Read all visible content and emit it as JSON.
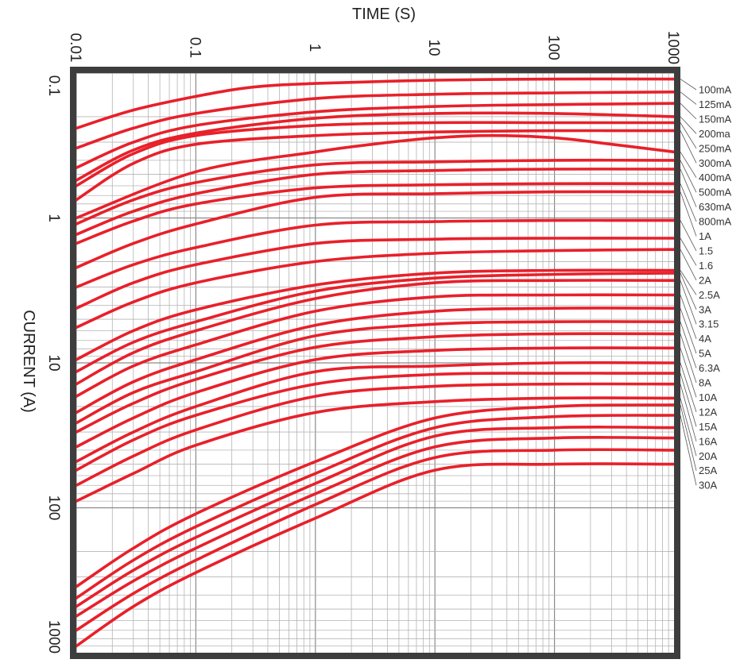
{
  "chart_data": {
    "type": "line",
    "title": "",
    "xlabel": "TIME (S)",
    "ylabel": "CURRENT (A)",
    "x_scale": "log",
    "y_scale": "log",
    "xlim": [
      0.01,
      1000
    ],
    "ylim": [
      0.1,
      1000
    ],
    "x_ticks": [
      "0.01",
      "0.1",
      "1",
      "10",
      "100",
      "1000"
    ],
    "y_ticks": [
      "0.1",
      "1",
      "10",
      "100",
      "1000"
    ],
    "grid": true,
    "legend_placement": "right",
    "line_color": "#e8202a",
    "frame_color": "#3d3d3d",
    "series": [
      {
        "name": "100mA",
        "x": [
          0.01,
          0.03,
          0.1,
          0.3,
          1,
          10,
          100,
          1000
        ],
        "y": [
          0.24,
          0.18,
          0.145,
          0.125,
          0.118,
          0.112,
          0.11,
          0.11
        ]
      },
      {
        "name": "125mA",
        "x": [
          0.01,
          0.03,
          0.1,
          1,
          10,
          100,
          1000
        ],
        "y": [
          0.33,
          0.24,
          0.19,
          0.15,
          0.14,
          0.137,
          0.135
        ]
      },
      {
        "name": "150mA",
        "x": [
          0.01,
          0.03,
          0.1,
          1,
          10,
          100,
          1000
        ],
        "y": [
          0.45,
          0.3,
          0.23,
          0.185,
          0.17,
          0.165,
          0.162
        ]
      },
      {
        "name": "200ma",
        "x": [
          0.01,
          0.03,
          0.1,
          1,
          10,
          100,
          1000
        ],
        "y": [
          0.55,
          0.34,
          0.26,
          0.205,
          0.19,
          0.19,
          0.2
        ]
      },
      {
        "name": "250mA",
        "x": [
          0.01,
          0.03,
          0.1,
          1,
          10,
          100,
          1000
        ],
        "y": [
          0.6,
          0.36,
          0.27,
          0.23,
          0.22,
          0.22,
          0.22
        ]
      },
      {
        "name": "300mA",
        "x": [
          0.01,
          0.03,
          0.1,
          1,
          10,
          100,
          1000
        ],
        "y": [
          0.75,
          0.42,
          0.31,
          0.27,
          0.255,
          0.25,
          0.25
        ]
      },
      {
        "name": "400mA",
        "x": [
          0.01,
          0.1,
          1,
          3,
          10,
          30,
          100,
          300,
          1000
        ],
        "y": [
          1.0,
          0.48,
          0.35,
          0.31,
          0.28,
          0.27,
          0.28,
          0.31,
          0.35
        ]
      },
      {
        "name": "500mA",
        "x": [
          0.01,
          0.03,
          0.1,
          1,
          10,
          100,
          1000
        ],
        "y": [
          1.1,
          0.75,
          0.57,
          0.43,
          0.41,
          0.4,
          0.4
        ]
      },
      {
        "name": "630mA",
        "x": [
          0.01,
          0.03,
          0.1,
          1,
          10,
          100,
          1000
        ],
        "y": [
          1.3,
          0.9,
          0.68,
          0.5,
          0.47,
          0.46,
          0.46
        ]
      },
      {
        "name": "800mA",
        "x": [
          0.01,
          0.03,
          0.1,
          1,
          10,
          100,
          1000
        ],
        "y": [
          1.5,
          1.05,
          0.8,
          0.62,
          0.59,
          0.58,
          0.58
        ]
      },
      {
        "name": "1A",
        "x": [
          0.01,
          0.03,
          0.1,
          1,
          10,
          100,
          1000
        ],
        "y": [
          2.2,
          1.5,
          1.1,
          0.72,
          0.68,
          0.66,
          0.66
        ]
      },
      {
        "name": "1.5",
        "x": [
          0.01,
          0.03,
          0.1,
          1,
          10,
          100,
          1000
        ],
        "y": [
          3.0,
          2.1,
          1.6,
          1.12,
          1.06,
          1.04,
          1.04
        ]
      },
      {
        "name": "1.6",
        "x": [
          0.01,
          0.03,
          0.1,
          1,
          10,
          100,
          1000
        ],
        "y": [
          4.2,
          2.8,
          2.1,
          1.5,
          1.4,
          1.38,
          1.38
        ]
      },
      {
        "name": "2A",
        "x": [
          0.01,
          0.03,
          0.1,
          1,
          10,
          100,
          1000
        ],
        "y": [
          5.7,
          3.8,
          2.8,
          2.0,
          1.75,
          1.68,
          1.65
        ]
      },
      {
        "name": "2.5A",
        "x": [
          0.01,
          0.03,
          0.1,
          1,
          10,
          100,
          1000
        ],
        "y": [
          9.5,
          6.0,
          4.3,
          2.9,
          2.4,
          2.3,
          2.3
        ]
      },
      {
        "name": "3A",
        "x": [
          0.01,
          0.03,
          0.1,
          1,
          10,
          100,
          1000
        ],
        "y": [
          11.5,
          7.2,
          5.2,
          3.2,
          2.6,
          2.45,
          2.4
        ]
      },
      {
        "name": "3.15",
        "x": [
          0.01,
          0.03,
          0.1,
          1,
          10,
          100,
          1000
        ],
        "y": [
          14,
          8.5,
          6.0,
          3.6,
          2.8,
          2.7,
          2.7
        ]
      },
      {
        "name": "4A",
        "x": [
          0.01,
          0.03,
          0.1,
          1,
          10,
          100,
          1000
        ],
        "y": [
          17,
          10.5,
          7.5,
          4.4,
          3.5,
          3.4,
          3.4
        ]
      },
      {
        "name": "5A",
        "x": [
          0.01,
          0.03,
          0.1,
          1,
          10,
          100,
          1000
        ],
        "y": [
          22,
          13.5,
          9.5,
          5.5,
          4.4,
          4.2,
          4.2
        ]
      },
      {
        "name": "6.3A",
        "x": [
          0.01,
          0.03,
          0.1,
          1,
          10,
          100,
          1000
        ],
        "y": [
          26,
          16,
          11.5,
          6.5,
          5.4,
          5.2,
          5.2
        ]
      },
      {
        "name": "8A",
        "x": [
          0.01,
          0.03,
          0.1,
          1,
          10,
          100,
          1000
        ],
        "y": [
          30,
          19,
          13,
          7.8,
          6.6,
          6.3,
          6.3
        ]
      },
      {
        "name": "10A",
        "x": [
          0.01,
          0.03,
          0.1,
          1,
          10,
          100,
          1000
        ],
        "y": [
          38,
          24,
          16,
          9.5,
          8.2,
          7.9,
          7.9
        ]
      },
      {
        "name": "12A",
        "x": [
          0.01,
          0.03,
          0.1,
          1,
          10,
          100,
          1000
        ],
        "y": [
          48,
          30,
          20,
          11.5,
          10.5,
          10.0,
          10.0
        ]
      },
      {
        "name": "15A",
        "x": [
          0.01,
          0.03,
          0.1,
          1,
          10,
          100,
          1000
        ],
        "y": [
          55,
          34,
          23,
          14,
          12,
          11.8,
          11.8
        ]
      },
      {
        "name": "16A",
        "x": [
          0.01,
          0.03,
          0.1,
          1,
          10,
          100,
          1000
        ],
        "y": [
          70,
          44,
          29,
          17,
          14.5,
          14,
          14
        ]
      },
      {
        "name": "20A",
        "x": [
          0.01,
          0.03,
          0.1,
          1,
          10,
          100,
          1000
        ],
        "y": [
          90,
          58,
          37,
          22,
          18.5,
          17.5,
          17.5
        ]
      },
      {
        "name": "25A",
        "x": [
          0.01,
          0.03,
          0.1,
          1,
          10,
          100,
          1000
        ],
        "y": [
          350,
          190,
          110,
          48,
          24,
          20,
          19.5
        ]
      },
      {
        "name": "30A",
        "x": [
          0.01,
          0.03,
          0.1,
          1,
          10,
          100,
          1000
        ],
        "y": [
          420,
          230,
          135,
          58,
          28,
          23.5,
          23
        ]
      },
      {
        "name": "",
        "x": [
          0.01,
          0.03,
          0.1,
          1,
          10,
          100,
          1000
        ],
        "y": [
          480,
          270,
          160,
          68,
          32,
          28,
          28
        ]
      },
      {
        "name": "",
        "x": [
          0.01,
          0.03,
          0.1,
          1,
          10,
          100,
          1000
        ],
        "y": [
          560,
          320,
          190,
          80,
          38,
          33,
          33
        ]
      },
      {
        "name": "",
        "x": [
          0.01,
          0.03,
          0.1,
          1,
          10,
          100,
          1000
        ],
        "y": [
          700,
          390,
          230,
          95,
          45,
          40,
          40
        ]
      },
      {
        "name": "",
        "x": [
          0.01,
          0.03,
          0.1,
          1,
          10,
          100,
          1000
        ],
        "y": [
          900,
          480,
          280,
          118,
          55,
          50,
          50
        ]
      }
    ]
  }
}
